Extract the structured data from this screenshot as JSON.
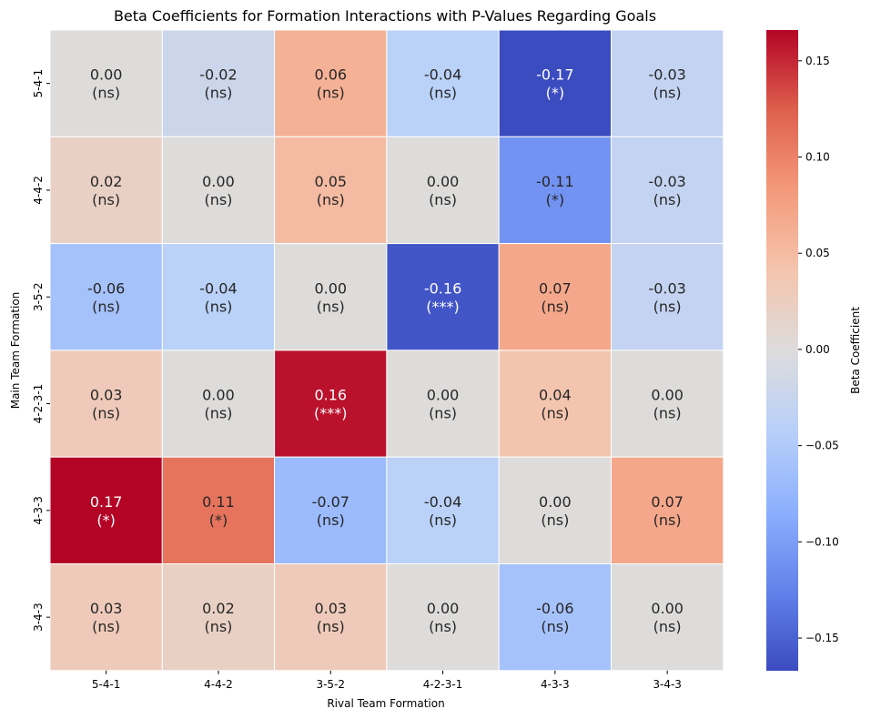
{
  "chart_data": {
    "type": "heatmap",
    "title": "Beta Coefficients for Formation Interactions with P-Values Regarding Goals",
    "xlabel": "Rival Team Formation",
    "ylabel": "Main Team Formation",
    "x_categories": [
      "5-4-1",
      "4-4-2",
      "3-5-2",
      "4-2-3-1",
      "4-3-3",
      "3-4-3"
    ],
    "y_categories": [
      "5-4-1",
      "4-4-2",
      "3-5-2",
      "4-2-3-1",
      "4-3-3",
      "3-4-3"
    ],
    "values": [
      [
        0.0,
        -0.02,
        0.06,
        -0.04,
        -0.17,
        -0.03
      ],
      [
        0.02,
        0.0,
        0.05,
        0.0,
        -0.11,
        -0.03
      ],
      [
        -0.06,
        -0.04,
        0.0,
        -0.16,
        0.07,
        -0.03
      ],
      [
        0.03,
        0.0,
        0.16,
        0.0,
        0.04,
        0.0
      ],
      [
        0.17,
        0.11,
        -0.07,
        -0.04,
        0.0,
        0.07
      ],
      [
        0.03,
        0.02,
        0.03,
        0.0,
        -0.06,
        0.0
      ]
    ],
    "value_labels": [
      [
        "0.00",
        "-0.02",
        "0.06",
        "-0.04",
        "-0.17",
        "-0.03"
      ],
      [
        "0.02",
        "0.00",
        "0.05",
        "0.00",
        "-0.11",
        "-0.03"
      ],
      [
        "-0.06",
        "-0.04",
        "0.00",
        "-0.16",
        "0.07",
        "-0.03"
      ],
      [
        "0.03",
        "0.00",
        "0.16",
        "0.00",
        "0.04",
        "0.00"
      ],
      [
        "0.17",
        "0.11",
        "-0.07",
        "-0.04",
        "0.00",
        "0.07"
      ],
      [
        "0.03",
        "0.02",
        "0.03",
        "0.00",
        "-0.06",
        "0.00"
      ]
    ],
    "significance": [
      [
        "(ns)",
        "(ns)",
        "(ns)",
        "(ns)",
        "(*)",
        "(ns)"
      ],
      [
        "(ns)",
        "(ns)",
        "(ns)",
        "(ns)",
        "(*)",
        "(ns)"
      ],
      [
        "(ns)",
        "(ns)",
        "(ns)",
        "(***)",
        "(ns)",
        "(ns)"
      ],
      [
        "(ns)",
        "(ns)",
        "(***)",
        "(ns)",
        "(ns)",
        "(ns)"
      ],
      [
        "(*)",
        "(*)",
        "(ns)",
        "(ns)",
        "(ns)",
        "(ns)"
      ],
      [
        "(ns)",
        "(ns)",
        "(ns)",
        "(ns)",
        "(ns)",
        "(ns)"
      ]
    ],
    "colorbar": {
      "label": "Beta Coefficient",
      "range": [
        -0.167,
        0.166
      ],
      "ticks": [
        0.15,
        0.1,
        0.05,
        0.0,
        -0.05,
        -0.1,
        -0.15
      ],
      "tick_labels": [
        "0.15",
        "0.10",
        "0.05",
        "0.00",
        "−0.05",
        "−0.10",
        "−0.15"
      ]
    },
    "colormap": "coolwarm",
    "grid": false
  }
}
